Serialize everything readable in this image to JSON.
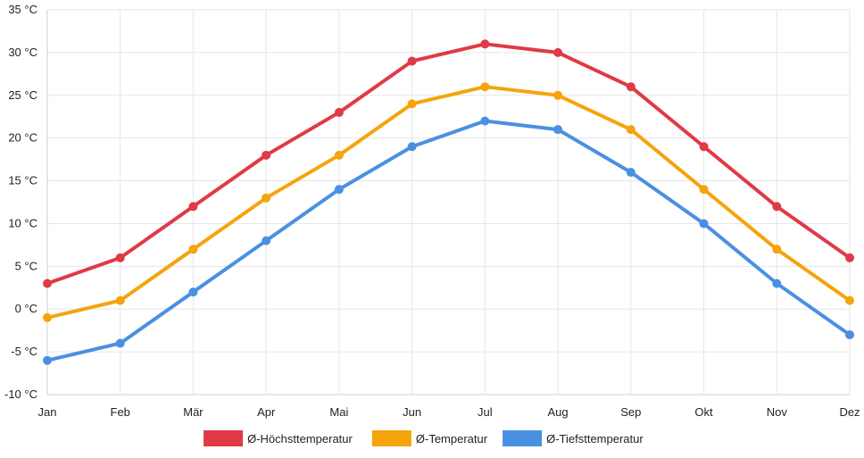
{
  "chart_data": {
    "type": "line",
    "categories": [
      "Jan",
      "Feb",
      "Mär",
      "Apr",
      "Mai",
      "Jun",
      "Jul",
      "Aug",
      "Sep",
      "Okt",
      "Nov",
      "Dez"
    ],
    "series": [
      {
        "name": "Ø-Höchsttemperatur",
        "color": "#e03a45",
        "values": [
          3,
          6,
          12,
          18,
          23,
          29,
          31,
          30,
          26,
          19,
          12,
          6
        ]
      },
      {
        "name": "Ø-Temperatur",
        "color": "#f5a40c",
        "values": [
          -1,
          1,
          7,
          13,
          18,
          24,
          26,
          25,
          21,
          14,
          7,
          1
        ]
      },
      {
        "name": "Ø-Tiefsttemperatur",
        "color": "#4a90e2",
        "values": [
          -6,
          -4,
          2,
          8,
          14,
          19,
          22,
          21,
          16,
          10,
          3,
          -3
        ]
      }
    ],
    "y_ticks": [
      {
        "value": 35,
        "label": "35 °C"
      },
      {
        "value": 30,
        "label": "30 °C"
      },
      {
        "value": 25,
        "label": "25 °C"
      },
      {
        "value": 20,
        "label": "20 °C"
      },
      {
        "value": 15,
        "label": "15 °C"
      },
      {
        "value": 10,
        "label": "10 °C"
      },
      {
        "value": 5,
        "label": "5 °C"
      },
      {
        "value": 0,
        "label": "0 °C"
      },
      {
        "value": -5,
        "label": "-5 °C"
      },
      {
        "value": -10,
        "label": "-10 °C"
      }
    ],
    "ylim": [
      -10,
      35
    ],
    "grid": true,
    "legend_position": "bottom-center"
  }
}
